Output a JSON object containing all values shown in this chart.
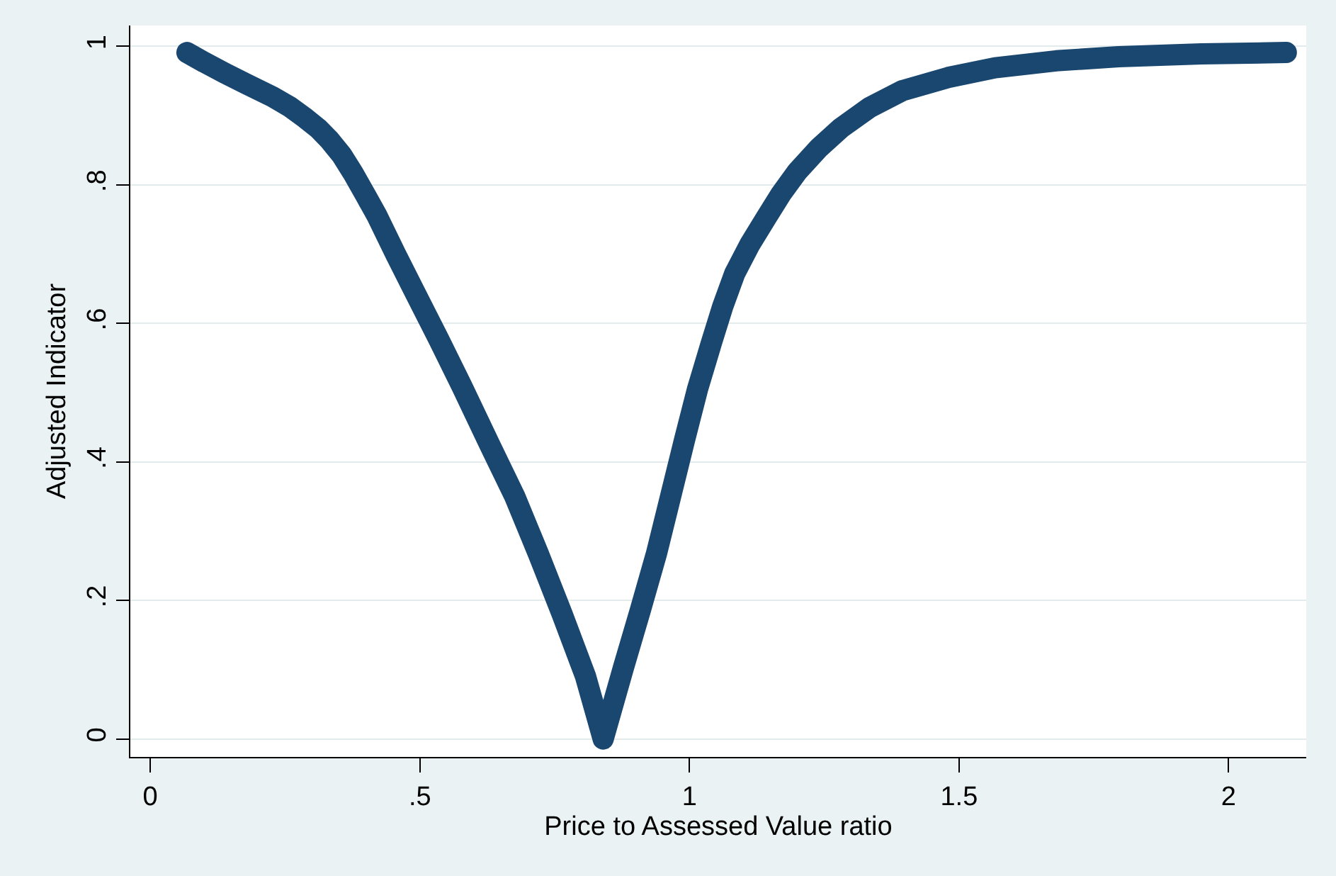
{
  "chart_data": {
    "type": "line",
    "xlabel": "Price to Assessed Value ratio",
    "ylabel": "Adjusted Indicator",
    "x": [
      0.068,
      0.1,
      0.139,
      0.18,
      0.227,
      0.26,
      0.288,
      0.312,
      0.332,
      0.355,
      0.376,
      0.4,
      0.42,
      0.455,
      0.49,
      0.535,
      0.578,
      0.63,
      0.676,
      0.72,
      0.764,
      0.807,
      0.84,
      0.878,
      0.909,
      0.939,
      0.965,
      0.991,
      1.015,
      1.04,
      1.062,
      1.084,
      1.112,
      1.142,
      1.17,
      1.2,
      1.24,
      1.281,
      1.335,
      1.395,
      1.48,
      1.567,
      1.68,
      1.796,
      1.95,
      2.107
    ],
    "series": [
      {
        "color": "#1a476f",
        "values": [
          0.991,
          0.977,
          0.961,
          0.945,
          0.927,
          0.912,
          0.896,
          0.881,
          0.865,
          0.843,
          0.817,
          0.784,
          0.756,
          0.7,
          0.646,
          0.577,
          0.509,
          0.424,
          0.35,
          0.267,
          0.18,
          0.091,
          0,
          0.104,
          0.186,
          0.268,
          0.35,
          0.432,
          0.505,
          0.57,
          0.625,
          0.672,
          0.714,
          0.752,
          0.787,
          0.819,
          0.853,
          0.882,
          0.912,
          0.936,
          0.955,
          0.969,
          0.979,
          0.985,
          0.989,
          0.991
        ]
      }
    ],
    "xlim": [
      -0.037,
      2.144
    ],
    "ylim": [
      -0.026,
      1.03
    ],
    "xticks": [
      0,
      {
        "value": 0.5,
        "label": ".5"
      },
      1,
      1.5,
      2
    ],
    "yticks": [
      0,
      {
        "value": 0.2,
        "label": ".2"
      },
      {
        "value": 0.4,
        "label": ".4"
      },
      {
        "value": 0.6,
        "label": ".6"
      },
      {
        "value": 0.8,
        "label": ".8"
      },
      1
    ],
    "grid": "y",
    "line_style": "solid"
  }
}
